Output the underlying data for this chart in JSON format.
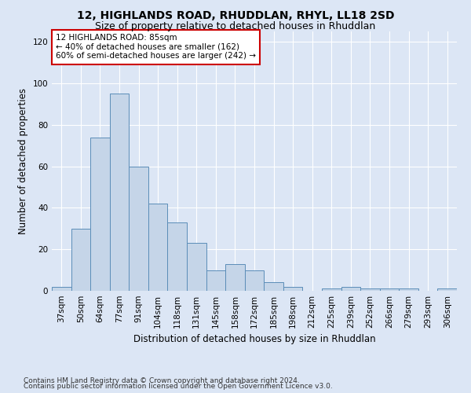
{
  "title": "12, HIGHLANDS ROAD, RHUDDLAN, RHYL, LL18 2SD",
  "subtitle": "Size of property relative to detached houses in Rhuddlan",
  "xlabel": "Distribution of detached houses by size in Rhuddlan",
  "ylabel": "Number of detached properties",
  "categories": [
    "37sqm",
    "50sqm",
    "64sqm",
    "77sqm",
    "91sqm",
    "104sqm",
    "118sqm",
    "131sqm",
    "145sqm",
    "158sqm",
    "172sqm",
    "185sqm",
    "198sqm",
    "212sqm",
    "225sqm",
    "239sqm",
    "252sqm",
    "266sqm",
    "279sqm",
    "293sqm",
    "306sqm"
  ],
  "values": [
    2,
    30,
    74,
    95,
    60,
    42,
    33,
    23,
    10,
    13,
    10,
    4,
    2,
    0,
    1,
    2,
    1,
    1,
    1,
    0,
    1
  ],
  "bar_color": "#c5d5e8",
  "bar_edge_color": "#5b8db8",
  "ylim": [
    0,
    125
  ],
  "yticks": [
    0,
    20,
    40,
    60,
    80,
    100,
    120
  ],
  "annotation_text": "12 HIGHLANDS ROAD: 85sqm\n← 40% of detached houses are smaller (162)\n60% of semi-detached houses are larger (242) →",
  "annotation_box_color": "#ffffff",
  "annotation_box_edge": "#cc0000",
  "footer_line1": "Contains HM Land Registry data © Crown copyright and database right 2024.",
  "footer_line2": "Contains public sector information licensed under the Open Government Licence v3.0.",
  "bg_color": "#dce6f5",
  "plot_bg_color": "#dce6f5",
  "grid_color": "#ffffff",
  "title_fontsize": 10,
  "subtitle_fontsize": 9,
  "xlabel_fontsize": 8.5,
  "ylabel_fontsize": 8.5,
  "tick_fontsize": 7.5,
  "annotation_fontsize": 7.5,
  "footer_fontsize": 6.5
}
